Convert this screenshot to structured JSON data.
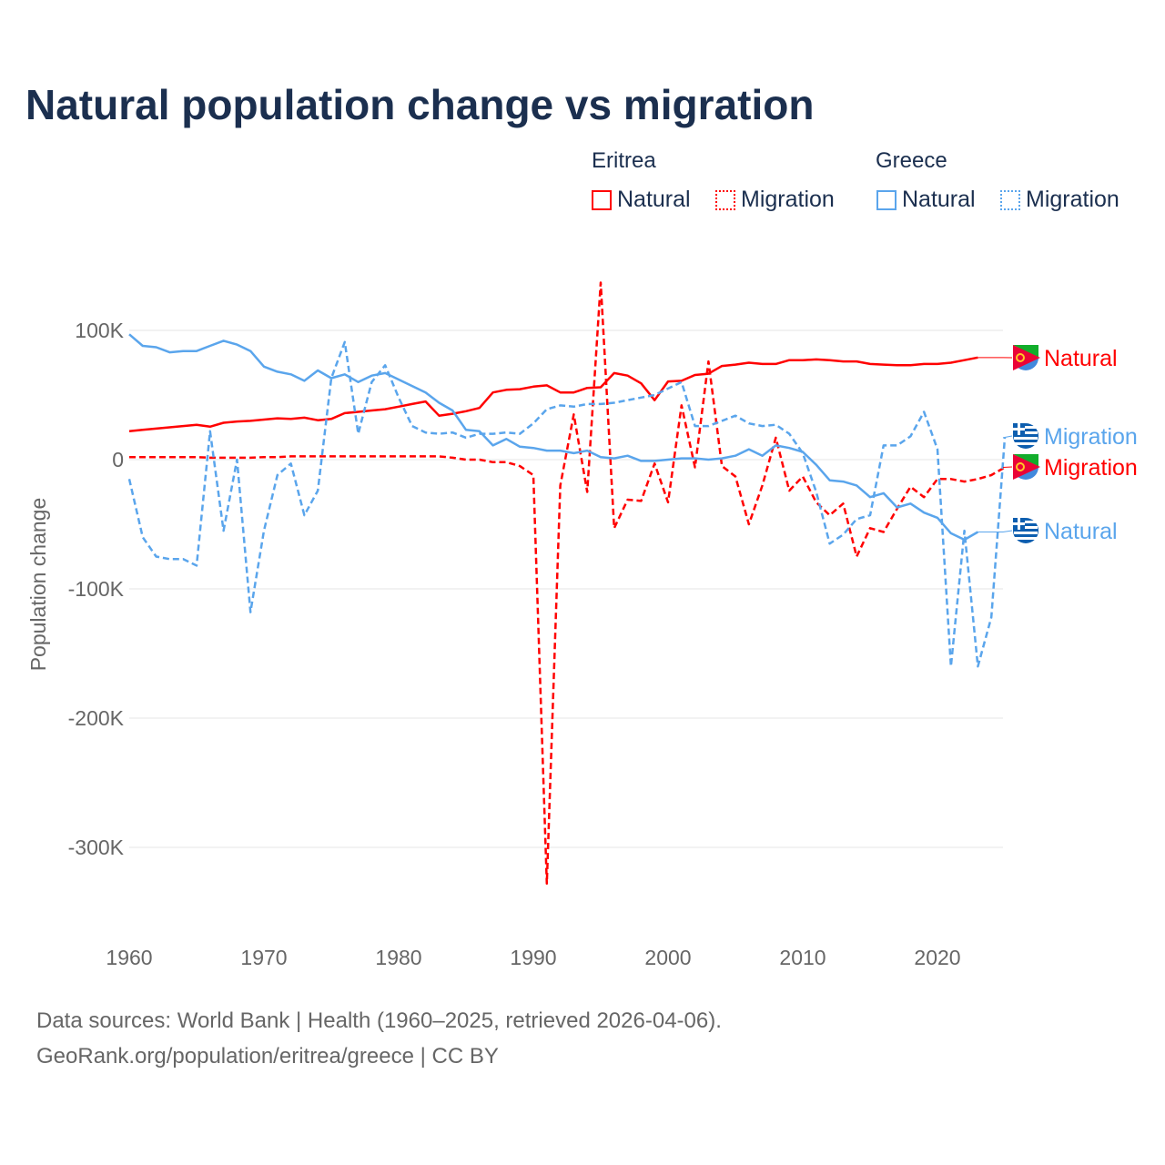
{
  "title": "Natural population change vs migration",
  "legend": {
    "groups": [
      {
        "name": "Eritrea",
        "color": "#ff0000",
        "items": [
          "Natural",
          "Migration"
        ]
      },
      {
        "name": "Greece",
        "color": "#5aa5ec",
        "items": [
          "Natural",
          "Migration"
        ]
      }
    ]
  },
  "footer": {
    "line1": "Data sources: World Bank | Health (1960–2025, retrieved 2026-04-06).",
    "line2": "GeoRank.org/population/eritrea/greece | CC BY"
  },
  "chart_data": {
    "type": "line",
    "title": "Natural population change vs migration",
    "xlabel": "",
    "ylabel": "Population change",
    "xlim": [
      1960,
      2025
    ],
    "ylim": [
      -350000,
      160000
    ],
    "xticks": [
      1960,
      1970,
      1980,
      1990,
      2000,
      2010,
      2020
    ],
    "xtick_labels": [
      "1960",
      "1970",
      "1980",
      "1990",
      "2000",
      "2010",
      "2020"
    ],
    "yticks": [
      100000,
      0,
      -100000,
      -200000,
      -300000
    ],
    "ytick_labels": [
      "100K",
      "0",
      "-100K",
      "-200K",
      "-300K"
    ],
    "grid": true,
    "legend_placement": "top-right",
    "series": [
      {
        "name": "Eritrea Natural",
        "end_label": "Natural",
        "country": "Eritrea",
        "color": "#ff0000",
        "dash": false,
        "start": 1960,
        "values": [
          22000,
          23000,
          24000,
          25000,
          26000,
          27000,
          25500,
          28500,
          29500,
          30000,
          31000,
          32000,
          31500,
          32500,
          30500,
          31500,
          36000,
          37000,
          38000,
          39000,
          41000,
          43000,
          45000,
          34000,
          35500,
          37500,
          40000,
          52000,
          54000,
          54500,
          56500,
          57500,
          52000,
          52000,
          55500,
          56000,
          67000,
          65000,
          59000,
          46000,
          60500,
          61000,
          65500,
          66500,
          72500,
          73500,
          75000,
          74000,
          74000,
          77000,
          77000,
          77500,
          77000,
          76000,
          76000,
          74000,
          73500,
          73000,
          73000,
          74000,
          74000,
          75000,
          77000,
          79000
        ]
      },
      {
        "name": "Eritrea Migration",
        "end_label": "Migration",
        "country": "Eritrea",
        "color": "#ff0000",
        "dash": true,
        "start": 1960,
        "values": [
          2000,
          2000,
          2000,
          2000,
          2000,
          2000,
          1500,
          1500,
          1500,
          1500,
          2000,
          2000,
          2500,
          2500,
          2500,
          2500,
          2500,
          2500,
          2500,
          2500,
          2500,
          2500,
          2500,
          2500,
          1500,
          0,
          0,
          -2000,
          -2000,
          -5000,
          -12000,
          -328000,
          -20000,
          35000,
          -25000,
          137000,
          -53000,
          -31000,
          -32000,
          -3000,
          -33000,
          42000,
          -6000,
          76000,
          -5000,
          -13000,
          -50000,
          -20000,
          17000,
          -24000,
          -13000,
          -33000,
          -43000,
          -34000,
          -75000,
          -53000,
          -56000,
          -38000,
          -21000,
          -29000,
          -15000,
          -15000,
          -17000,
          -15000,
          -12000,
          -6000
        ]
      },
      {
        "name": "Greece Natural",
        "end_label": "Natural",
        "country": "Greece",
        "color": "#5aa5ec",
        "dash": false,
        "start": 1960,
        "values": [
          97000,
          88000,
          87000,
          83000,
          84000,
          84000,
          88000,
          92000,
          89000,
          84000,
          72000,
          68000,
          66000,
          61000,
          69000,
          63000,
          66000,
          60000,
          65000,
          67000,
          62000,
          57000,
          52000,
          44000,
          38000,
          23000,
          22000,
          11000,
          16000,
          10000,
          9000,
          7000,
          7000,
          5000,
          7000,
          2000,
          1000,
          3000,
          -1000,
          -1000,
          0,
          1000,
          1000,
          0,
          1000,
          3000,
          8000,
          3000,
          11000,
          9000,
          6000,
          -4000,
          -16000,
          -17000,
          -20000,
          -29000,
          -26000,
          -37000,
          -34000,
          -41000,
          -45000,
          -57000,
          -62000,
          -56000
        ]
      },
      {
        "name": "Greece Migration",
        "end_label": "Migration",
        "country": "Greece",
        "color": "#5aa5ec",
        "dash": true,
        "start": 1960,
        "values": [
          -15000,
          -60000,
          -75000,
          -77000,
          -77000,
          -82000,
          22000,
          -55000,
          0,
          -118000,
          -55000,
          -12000,
          -3000,
          -43000,
          -24000,
          63000,
          91000,
          20000,
          60000,
          73000,
          48000,
          26000,
          21000,
          20000,
          21000,
          17000,
          20000,
          20000,
          21000,
          20000,
          28000,
          39000,
          42000,
          41000,
          43000,
          43000,
          44000,
          46000,
          48000,
          50000,
          55000,
          60000,
          26000,
          26000,
          30000,
          34000,
          28000,
          26000,
          27000,
          20000,
          5000,
          -25000,
          -65000,
          -58000,
          -46000,
          -43000,
          11000,
          11000,
          18000,
          37000,
          8000,
          -160000,
          -55000,
          -160000,
          -122000,
          17000
        ]
      }
    ]
  }
}
